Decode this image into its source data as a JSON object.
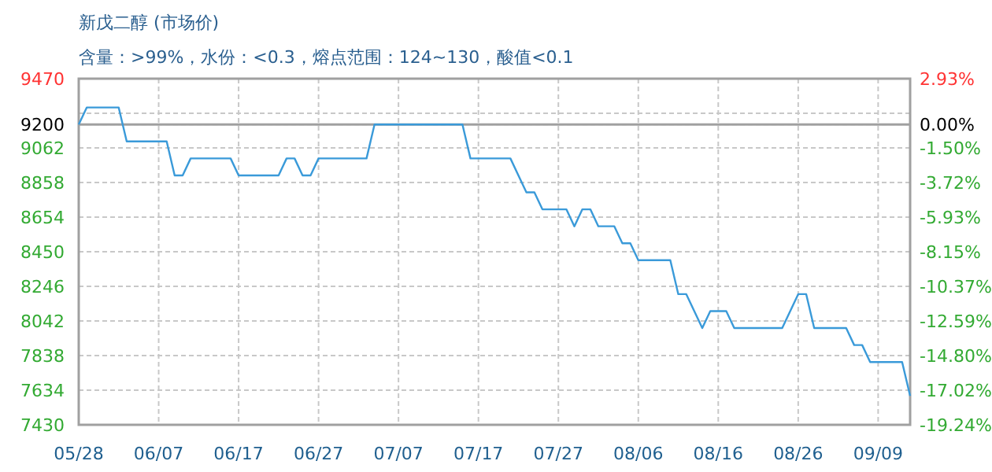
{
  "chart_data": {
    "type": "line",
    "title": "新戊二醇 (市场价)",
    "subtitle": "含量：>99%，水份：<0.3，熔点范围：124~130，酸值<0.1",
    "categories": [
      "05/28",
      null,
      null,
      null,
      null,
      null,
      null,
      null,
      null,
      null,
      "06/07",
      null,
      null,
      null,
      null,
      null,
      null,
      null,
      null,
      null,
      "06/17",
      null,
      null,
      null,
      null,
      null,
      null,
      null,
      null,
      null,
      "06/27",
      null,
      null,
      null,
      null,
      null,
      null,
      null,
      null,
      null,
      "07/07",
      null,
      null,
      null,
      null,
      null,
      null,
      null,
      null,
      null,
      "07/17",
      null,
      null,
      null,
      null,
      null,
      null,
      null,
      null,
      null,
      "07/27",
      null,
      null,
      null,
      null,
      null,
      null,
      null,
      null,
      null,
      "08/06",
      null,
      null,
      null,
      null,
      null,
      null,
      null,
      null,
      null,
      "08/16",
      null,
      null,
      null,
      null,
      null,
      null,
      null,
      null,
      null,
      "08/26",
      null,
      null,
      null,
      null,
      null,
      null,
      null,
      null,
      null,
      "09/09",
      null,
      null,
      null,
      null
    ],
    "series": [
      {
        "color": "#3a9ad9",
        "values": [
          9200,
          9300,
          9300,
          9300,
          9300,
          9300,
          9100,
          9100,
          9100,
          9100,
          9100,
          9100,
          8900,
          8900,
          9000,
          9000,
          9000,
          9000,
          9000,
          9000,
          8900,
          8900,
          8900,
          8900,
          8900,
          8900,
          9000,
          9000,
          8900,
          8900,
          9000,
          9000,
          9000,
          9000,
          9000,
          9000,
          9000,
          9200,
          9200,
          9200,
          9200,
          9200,
          9200,
          9200,
          9200,
          9200,
          9200,
          9200,
          9200,
          9000,
          9000,
          9000,
          9000,
          9000,
          9000,
          8900,
          8800,
          8800,
          8700,
          8700,
          8700,
          8700,
          8600,
          8700,
          8700,
          8600,
          8600,
          8600,
          8500,
          8500,
          8400,
          8400,
          8400,
          8400,
          8400,
          8200,
          8200,
          8100,
          8000,
          8100,
          8100,
          8100,
          8000,
          8000,
          8000,
          8000,
          8000,
          8000,
          8000,
          8100,
          8200,
          8200,
          8000,
          8000,
          8000,
          8000,
          8000,
          7900,
          7900,
          7800,
          7800,
          7800,
          7800,
          7800,
          7600
        ]
      }
    ],
    "ylim": [
      7430,
      9470
    ],
    "yticks": [
      7430,
      7634,
      7838,
      8042,
      8246,
      8450,
      8654,
      8858,
      9062,
      9200,
      {
        "value": 9266,
        "label": null
      },
      9470
    ],
    "y2lim": [
      -19.24,
      2.93
    ],
    "y2ticks": [
      {
        "value": 2.93,
        "label": "2.93%"
      },
      {
        "value": 0,
        "label": "0.00%"
      },
      {
        "value": -1.5,
        "label": "-1.50%"
      },
      {
        "value": -3.72,
        "label": "-3.72%"
      },
      {
        "value": -5.93,
        "label": "-5.93%"
      },
      {
        "value": -8.15,
        "label": "-8.15%"
      },
      {
        "value": -10.37,
        "label": "-10.37%"
      },
      {
        "value": -12.59,
        "label": "-12.59%"
      },
      {
        "value": -14.8,
        "label": "-14.80%"
      },
      {
        "value": -17.02,
        "label": "-17.02%"
      },
      {
        "value": -19.24,
        "label": "-19.24%"
      }
    ],
    "ref_lines": [
      {
        "axis": "y",
        "value": 9200,
        "color": "#a0a0a0"
      }
    ],
    "grid": true,
    "marker": "none",
    "line_style": "solid"
  }
}
